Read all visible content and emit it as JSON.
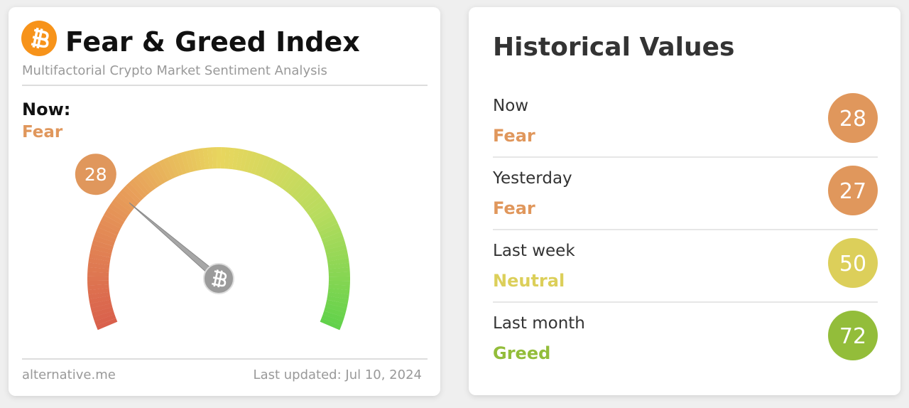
{
  "gauge_card": {
    "title": "Fear & Greed Index",
    "subtitle": "Multifactorial Crypto Market Sentiment Analysis",
    "now_label": "Now:",
    "now_classification": "Fear",
    "value": 28,
    "range": [
      0,
      100
    ],
    "color": "#e0975c",
    "source": "alternative.me",
    "updated": "Last updated: Jul 10, 2024"
  },
  "historical": {
    "title": "Historical Values",
    "rows": [
      {
        "period": "Now",
        "classification": "Fear",
        "value": 28,
        "color": "#e0975c"
      },
      {
        "period": "Yesterday",
        "classification": "Fear",
        "value": 27,
        "color": "#e0975c"
      },
      {
        "period": "Last week",
        "classification": "Neutral",
        "value": 50,
        "color": "#dccf5a"
      },
      {
        "period": "Last month",
        "classification": "Greed",
        "value": 72,
        "color": "#93bd3a"
      }
    ]
  }
}
